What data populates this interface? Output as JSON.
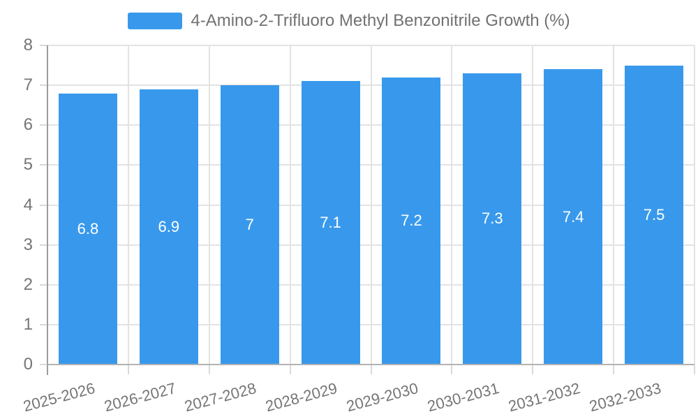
{
  "chart_data": {
    "type": "bar",
    "title": "4-Amino-2-Trifluoro Methyl Benzonitrile Growth (%)",
    "categories": [
      "2025-2026",
      "2026-2027",
      "2027-2028",
      "2028-2029",
      "2029-2030",
      "2030-2031",
      "2031-2032",
      "2032-2033"
    ],
    "values": [
      6.8,
      6.9,
      7,
      7.1,
      7.2,
      7.3,
      7.4,
      7.5
    ],
    "value_labels": [
      "6.8",
      "6.9",
      "7",
      "7.1",
      "7.2",
      "7.3",
      "7.4",
      "7.5"
    ],
    "xlabel": "",
    "ylabel": "",
    "ylim": [
      0,
      8
    ],
    "y_ticks": [
      0,
      1,
      2,
      3,
      4,
      5,
      6,
      7,
      8
    ],
    "grid": true,
    "legend_position": "top",
    "colors": {
      "bar": "#3899EC",
      "grid": "#E3E3E3",
      "tick": "#D9D9D9",
      "axis_y": "#9C9C9C",
      "axis_x": "#B3B3B3",
      "text": "#757575",
      "value_label": "#FFFFFF"
    }
  }
}
